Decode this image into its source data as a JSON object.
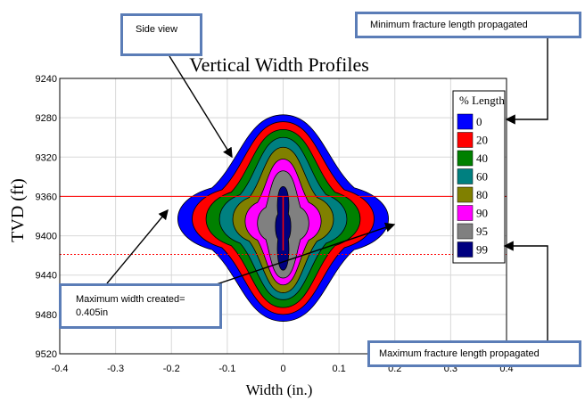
{
  "chart_data": {
    "type": "area",
    "title": "Vertical Width Profiles",
    "xlabel": "Width (in.)",
    "ylabel": "TVD (ft)",
    "xlim": [
      -0.4,
      0.4
    ],
    "ylim": [
      9520,
      9240
    ],
    "y_inverted": true,
    "x_ticks": [
      "-0.4",
      "-0.3",
      "-0.2",
      "-0.1",
      "0",
      "0.1",
      "0.2",
      "0.3",
      "0.4"
    ],
    "y_ticks": [
      "9240",
      "9280",
      "9320",
      "9360",
      "9400",
      "9440",
      "9480",
      "9520"
    ],
    "grid": true,
    "legend_title": "% Length",
    "legend_position": "top-right",
    "series": [
      {
        "name": "0",
        "color": "#0000ff",
        "top": 9277,
        "bottom": 9487,
        "center": 9383,
        "max_half_width": 0.205,
        "neck_half_width": 0.085
      },
      {
        "name": "20",
        "color": "#ff0000",
        "top": 9284,
        "bottom": 9480,
        "center": 9383,
        "max_half_width": 0.177,
        "neck_half_width": 0.073
      },
      {
        "name": "40",
        "color": "#008000",
        "top": 9292,
        "bottom": 9473,
        "center": 9383,
        "max_half_width": 0.15,
        "neck_half_width": 0.062
      },
      {
        "name": "60",
        "color": "#008080",
        "top": 9300,
        "bottom": 9465,
        "center": 9383,
        "max_half_width": 0.124,
        "neck_half_width": 0.051
      },
      {
        "name": "80",
        "color": "#808000",
        "top": 9310,
        "bottom": 9458,
        "center": 9383,
        "max_half_width": 0.098,
        "neck_half_width": 0.04
      },
      {
        "name": "90",
        "color": "#ff00ff",
        "top": 9322,
        "bottom": 9450,
        "center": 9385,
        "max_half_width": 0.074,
        "neck_half_width": 0.032
      },
      {
        "name": "95",
        "color": "#808080",
        "top": 9334,
        "bottom": 9443,
        "center": 9387,
        "max_half_width": 0.05,
        "neck_half_width": 0.026
      },
      {
        "name": "99",
        "color": "#000080",
        "top": 9350,
        "bottom": 9435,
        "center": 9390,
        "max_half_width": 0.015,
        "neck_half_width": 0.013
      }
    ],
    "reference_lines": [
      {
        "y": 9360,
        "style": "solid",
        "color": "#ff0000"
      },
      {
        "y": 9419,
        "style": "dotted",
        "color": "#ff0000"
      }
    ]
  },
  "annotations": {
    "side_view": "Side view",
    "min_length": "Minimum fracture length propagated",
    "max_width_line1": "Maximum width created=",
    "max_width_line2": "0.405in",
    "max_length": "Maximum fracture length propagated"
  }
}
